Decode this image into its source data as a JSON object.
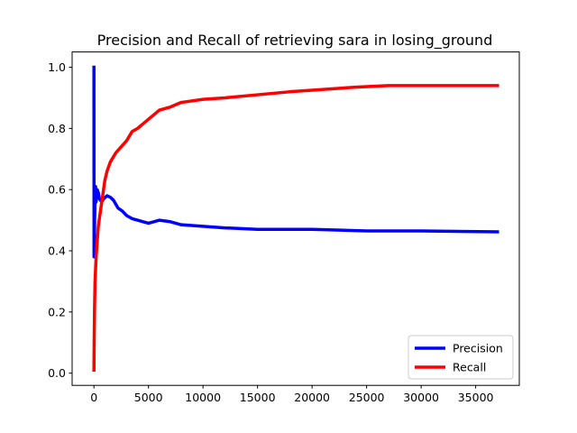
{
  "chart_data": {
    "type": "line",
    "title": "Precision and Recall of retrieving sara in losing_ground",
    "xlabel": "",
    "ylabel": "",
    "xlim": [
      -2000,
      39000
    ],
    "ylim": [
      -0.04,
      1.05
    ],
    "x_ticks": [
      0,
      5000,
      10000,
      15000,
      20000,
      25000,
      30000,
      35000
    ],
    "y_ticks": [
      0.0,
      0.2,
      0.4,
      0.6,
      0.8,
      1.0
    ],
    "x_tick_labels": [
      "0",
      "5000",
      "10000",
      "15000",
      "20000",
      "25000",
      "30000",
      "35000"
    ],
    "y_tick_labels": [
      "0.0",
      "0.2",
      "0.4",
      "0.6",
      "0.8",
      "1.0"
    ],
    "grid": false,
    "legend_position": "lower-right",
    "series": [
      {
        "name": "Precision",
        "color": "#0000ff",
        "x": [
          0,
          10,
          30,
          60,
          100,
          150,
          200,
          300,
          400,
          500,
          700,
          900,
          1200,
          1500,
          1800,
          2200,
          2600,
          3000,
          3500,
          4000,
          4500,
          5000,
          5500,
          6000,
          7000,
          8000,
          10000,
          12000,
          15000,
          20000,
          25000,
          30000,
          37000
        ],
        "y": [
          1.0,
          0.38,
          0.4,
          0.5,
          0.56,
          0.61,
          0.56,
          0.6,
          0.59,
          0.57,
          0.56,
          0.57,
          0.58,
          0.575,
          0.565,
          0.54,
          0.53,
          0.515,
          0.505,
          0.5,
          0.495,
          0.49,
          0.495,
          0.5,
          0.495,
          0.485,
          0.48,
          0.475,
          0.47,
          0.47,
          0.465,
          0.465,
          0.462
        ]
      },
      {
        "name": "Recall",
        "color": "#ff0000",
        "x": [
          0,
          20,
          50,
          100,
          200,
          300,
          400,
          600,
          800,
          1000,
          1200,
          1500,
          2000,
          2500,
          3000,
          3500,
          4000,
          5000,
          6000,
          7000,
          8000,
          10000,
          12000,
          15000,
          18000,
          20000,
          24000,
          27000,
          30000,
          37000
        ],
        "y": [
          0.01,
          0.1,
          0.2,
          0.3,
          0.38,
          0.43,
          0.48,
          0.53,
          0.58,
          0.63,
          0.66,
          0.69,
          0.72,
          0.74,
          0.76,
          0.79,
          0.8,
          0.83,
          0.86,
          0.87,
          0.885,
          0.895,
          0.9,
          0.91,
          0.92,
          0.925,
          0.935,
          0.94,
          0.94,
          0.94
        ]
      }
    ]
  }
}
